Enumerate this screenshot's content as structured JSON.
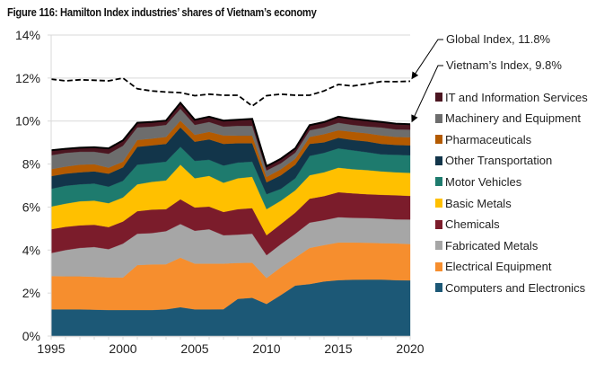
{
  "title": "Figure 116: Hamilton Index industries’ shares of Vietnam’s economy",
  "chart_data": {
    "type": "area",
    "stacked": true,
    "title": "Figure 116: Hamilton Index industries’ shares of Vietnam’s economy",
    "xlabel": "",
    "ylabel": "",
    "x": [
      1995,
      1996,
      1997,
      1998,
      1999,
      2000,
      2001,
      2002,
      2003,
      2004,
      2005,
      2006,
      2007,
      2008,
      2009,
      2010,
      2011,
      2012,
      2013,
      2014,
      2015,
      2016,
      2017,
      2018,
      2019,
      2020
    ],
    "xticks": [
      "1995",
      "2000",
      "2005",
      "2010",
      "2015",
      "2020"
    ],
    "xtick_values": [
      1995,
      2000,
      2005,
      2010,
      2015,
      2020
    ],
    "yticks": [
      "0%",
      "2%",
      "4%",
      "6%",
      "8%",
      "10%",
      "12%",
      "14%"
    ],
    "ytick_values": [
      0,
      2,
      4,
      6,
      8,
      10,
      12,
      14
    ],
    "ylim": [
      0,
      14
    ],
    "xlim": [
      1995,
      2020
    ],
    "grid": "horizontal",
    "legend_position": "right",
    "series": [
      {
        "name": "Computers and Electronics",
        "color": "#1C5876",
        "values": [
          1.24,
          1.24,
          1.24,
          1.23,
          1.21,
          1.21,
          1.21,
          1.21,
          1.24,
          1.34,
          1.24,
          1.24,
          1.25,
          1.73,
          1.78,
          1.49,
          1.91,
          2.35,
          2.42,
          2.54,
          2.6,
          2.62,
          2.63,
          2.63,
          2.6,
          2.59
        ]
      },
      {
        "name": "Electrical Equipment",
        "color": "#F68E2E",
        "values": [
          1.55,
          1.54,
          1.54,
          1.53,
          1.52,
          1.51,
          2.09,
          2.12,
          2.1,
          2.31,
          2.13,
          2.13,
          2.12,
          1.67,
          1.63,
          1.21,
          1.29,
          1.3,
          1.68,
          1.69,
          1.75,
          1.73,
          1.71,
          1.69,
          1.71,
          1.69
        ]
      },
      {
        "name": "Fabricated Metals",
        "color": "#A6A6A6",
        "values": [
          1.07,
          1.22,
          1.32,
          1.38,
          1.31,
          1.58,
          1.46,
          1.46,
          1.54,
          1.56,
          1.53,
          1.6,
          1.32,
          1.32,
          1.35,
          1.06,
          1.08,
          1.11,
          1.18,
          1.16,
          1.18,
          1.15,
          1.15,
          1.14,
          1.12,
          1.14
        ]
      },
      {
        "name": "Chemicals",
        "color": "#7B1C2B",
        "values": [
          1.11,
          1.08,
          1.05,
          1.04,
          1.03,
          1.03,
          1.05,
          1.09,
          1.02,
          1.15,
          1.08,
          1.05,
          1.08,
          1.18,
          1.19,
          0.93,
          0.93,
          0.98,
          1.11,
          1.12,
          1.16,
          1.14,
          1.11,
          1.11,
          1.12,
          1.1
        ]
      },
      {
        "name": "Basic Metals",
        "color": "#FFC000",
        "values": [
          1.05,
          1.08,
          1.12,
          1.12,
          1.11,
          1.12,
          1.25,
          1.29,
          1.34,
          1.61,
          1.36,
          1.43,
          1.36,
          1.44,
          1.46,
          1.21,
          1.09,
          1.04,
          1.09,
          1.11,
          1.14,
          1.12,
          1.12,
          1.09,
          1.07,
          1.07
        ]
      },
      {
        "name": "Motor Vehicles",
        "color": "#1E7B6E",
        "values": [
          0.83,
          0.83,
          0.79,
          0.79,
          0.77,
          0.77,
          0.91,
          0.87,
          0.87,
          0.83,
          0.81,
          0.75,
          0.8,
          0.73,
          0.7,
          0.7,
          0.55,
          0.56,
          0.9,
          0.9,
          0.9,
          0.88,
          0.83,
          0.79,
          0.81,
          0.82
        ]
      },
      {
        "name": "Other Transportation",
        "color": "#12354A",
        "values": [
          0.59,
          0.56,
          0.56,
          0.57,
          0.6,
          0.63,
          0.83,
          0.83,
          0.83,
          0.91,
          0.89,
          0.95,
          1.01,
          0.9,
          0.86,
          0.55,
          0.63,
          0.63,
          0.56,
          0.49,
          0.49,
          0.48,
          0.5,
          0.49,
          0.46,
          0.46
        ]
      },
      {
        "name": "Pharmaceuticals",
        "color": "#B35A00",
        "values": [
          0.32,
          0.33,
          0.35,
          0.33,
          0.28,
          0.26,
          0.32,
          0.31,
          0.32,
          0.31,
          0.32,
          0.35,
          0.39,
          0.35,
          0.35,
          0.25,
          0.28,
          0.28,
          0.32,
          0.38,
          0.35,
          0.38,
          0.38,
          0.39,
          0.37,
          0.38
        ]
      },
      {
        "name": "Machinery and Equipment",
        "color": "#6D6D6D",
        "values": [
          0.65,
          0.64,
          0.6,
          0.58,
          0.65,
          0.74,
          0.59,
          0.56,
          0.56,
          0.55,
          0.46,
          0.46,
          0.41,
          0.46,
          0.46,
          0.3,
          0.28,
          0.28,
          0.31,
          0.32,
          0.35,
          0.32,
          0.32,
          0.37,
          0.35,
          0.35
        ]
      },
      {
        "name": "IT and Information Services",
        "color": "#4B1520",
        "values": [
          0.23,
          0.19,
          0.19,
          0.21,
          0.25,
          0.25,
          0.21,
          0.22,
          0.2,
          0.28,
          0.24,
          0.24,
          0.28,
          0.28,
          0.32,
          0.2,
          0.21,
          0.2,
          0.24,
          0.24,
          0.28,
          0.28,
          0.28,
          0.26,
          0.27,
          0.25
        ]
      }
    ],
    "lines": [
      {
        "name": "Global Index",
        "style": "dashed",
        "color": "#000000",
        "values": [
          11.95,
          11.87,
          11.92,
          11.9,
          11.87,
          12.0,
          11.5,
          11.4,
          11.35,
          11.32,
          11.18,
          11.25,
          11.2,
          11.2,
          10.7,
          11.18,
          11.25,
          11.2,
          11.2,
          11.4,
          11.7,
          11.63,
          11.73,
          11.84,
          11.83,
          11.85
        ]
      }
    ],
    "annotations": [
      {
        "text": "Global Index, 11.8%",
        "target_year": 2020,
        "target_value": 11.85
      },
      {
        "text": "Vietnam’s Index, 9.8%",
        "target_year": 2020,
        "target_value": 9.85
      }
    ]
  }
}
